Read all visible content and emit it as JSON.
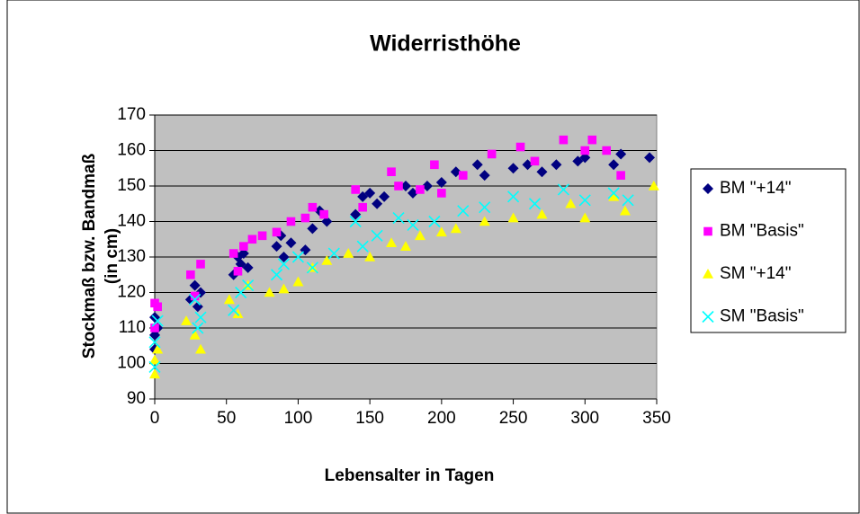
{
  "chart_data": {
    "type": "scatter",
    "title": "Widerristhöhe",
    "x_label": "Lebensalter in Tagen",
    "y_label": [
      "Stockmaß bzw. Bandmaß",
      "(in cm)"
    ],
    "xlim": [
      0,
      350
    ],
    "xticks": [
      0,
      50,
      100,
      150,
      200,
      250,
      300,
      350
    ],
    "ylim": [
      90,
      170
    ],
    "yticks": [
      90,
      100,
      110,
      120,
      130,
      140,
      150,
      160,
      170
    ],
    "grid": true,
    "legend": "right",
    "series": [
      {
        "name": "BM \"+14\"",
        "color": "#000080",
        "marker": "diamond",
        "x": [
          0,
          0,
          0,
          2,
          25,
          28,
          30,
          32,
          55,
          58,
          60,
          62,
          65,
          85,
          88,
          90,
          95,
          105,
          110,
          115,
          120,
          140,
          145,
          150,
          155,
          160,
          175,
          180,
          190,
          200,
          210,
          225,
          230,
          250,
          260,
          270,
          280,
          295,
          300,
          320,
          325,
          345
        ],
        "values": [
          113,
          108,
          104,
          110,
          118,
          122,
          116,
          120,
          125,
          130,
          128,
          131,
          127,
          133,
          136,
          130,
          134,
          132,
          138,
          143,
          140,
          142,
          147,
          148,
          145,
          147,
          150,
          148,
          150,
          151,
          154,
          156,
          153,
          155,
          156,
          154,
          156,
          157,
          158,
          156,
          159,
          158
        ]
      },
      {
        "name": "BM \"Basis\"",
        "color": "#ff00ff",
        "marker": "square",
        "x": [
          0,
          0,
          2,
          25,
          28,
          32,
          55,
          58,
          62,
          68,
          75,
          85,
          95,
          105,
          110,
          118,
          140,
          145,
          165,
          170,
          185,
          195,
          200,
          215,
          235,
          255,
          265,
          285,
          300,
          305,
          315,
          325
        ],
        "values": [
          117,
          110,
          116,
          125,
          119,
          128,
          131,
          126,
          133,
          135,
          136,
          137,
          140,
          141,
          144,
          142,
          149,
          144,
          154,
          150,
          149,
          156,
          148,
          153,
          159,
          161,
          157,
          163,
          160,
          163,
          160,
          153
        ]
      },
      {
        "name": "SM \"+14\"",
        "color": "#ffff00",
        "marker": "triangle",
        "x": [
          0,
          0,
          2,
          22,
          28,
          32,
          52,
          58,
          65,
          80,
          90,
          100,
          110,
          120,
          135,
          150,
          165,
          175,
          185,
          200,
          210,
          230,
          250,
          270,
          290,
          300,
          320,
          328,
          348
        ],
        "values": [
          97,
          101,
          104,
          112,
          108,
          104,
          118,
          114,
          122,
          120,
          121,
          123,
          127,
          129,
          131,
          130,
          134,
          133,
          136,
          137,
          138,
          140,
          141,
          142,
          145,
          141,
          147,
          143,
          150
        ]
      },
      {
        "name": "SM \"Basis\"",
        "color": "#00ffff",
        "marker": "x",
        "x": [
          0,
          0,
          2,
          28,
          30,
          32,
          55,
          60,
          65,
          85,
          90,
          100,
          110,
          125,
          140,
          145,
          155,
          170,
          180,
          195,
          215,
          230,
          250,
          265,
          285,
          300,
          320,
          330
        ],
        "values": [
          99,
          106,
          112,
          118,
          110,
          113,
          115,
          120,
          122,
          125,
          128,
          130,
          127,
          131,
          140,
          133,
          136,
          141,
          139,
          140,
          143,
          144,
          147,
          145,
          149,
          146,
          148,
          146
        ]
      }
    ]
  }
}
